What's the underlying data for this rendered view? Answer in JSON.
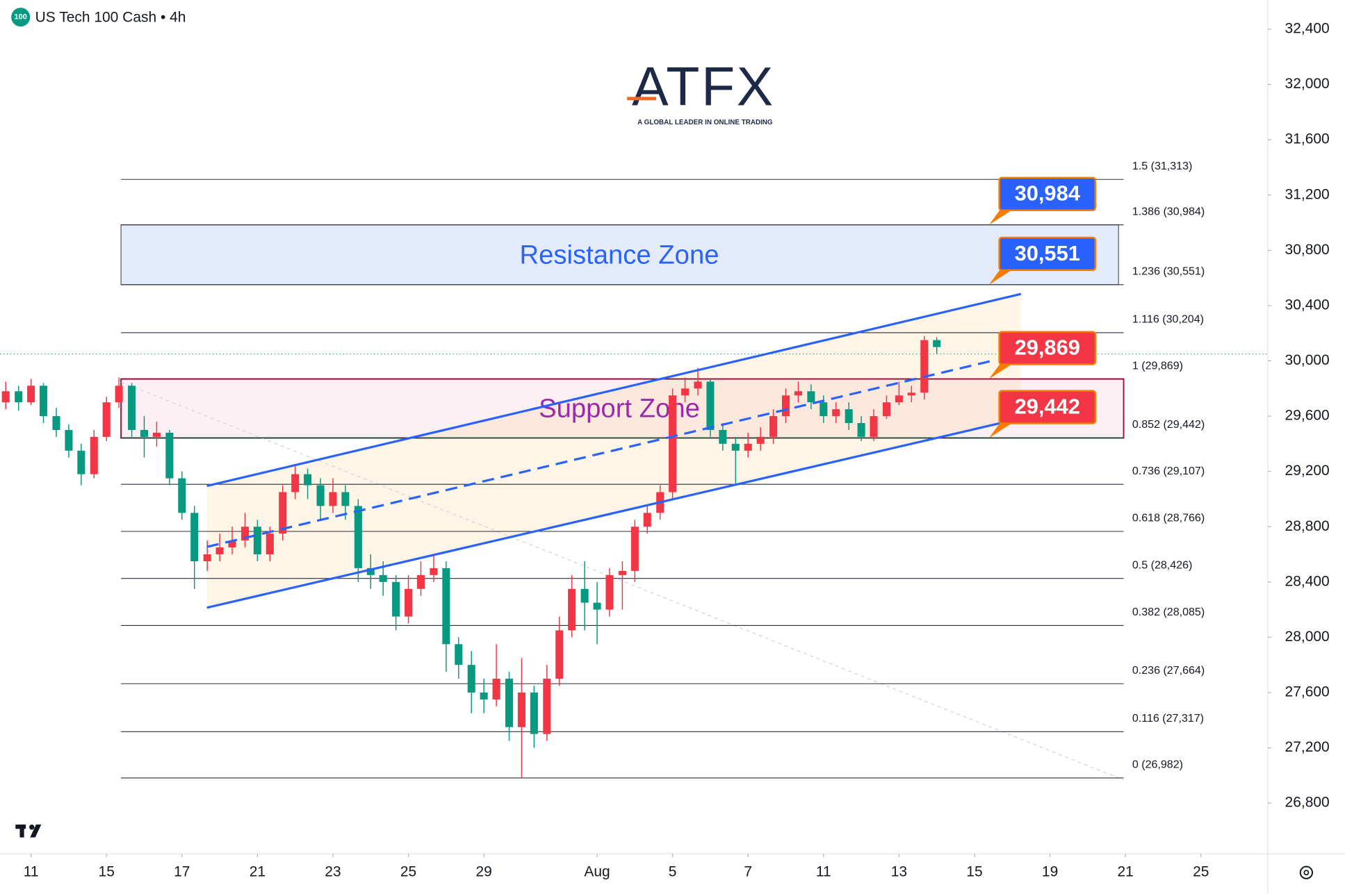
{
  "header": {
    "symbol_icon": "100",
    "title": "US Tech 100 Cash • 4h"
  },
  "logo": {
    "name": "ATFX",
    "tagline": "A GLOBAL LEADER IN ONLINE TRADING"
  },
  "chart_data": {
    "type": "candlestick",
    "up_color": "#f23645",
    "down_color": "#089981",
    "xlim": [
      -0.82,
      32.77
    ],
    "ylim": [
      26440,
      32611
    ],
    "xticks": [
      {
        "value": 0,
        "label": "11"
      },
      {
        "value": 2,
        "label": "15"
      },
      {
        "value": 4,
        "label": "17"
      },
      {
        "value": 6,
        "label": "21"
      },
      {
        "value": 8,
        "label": "23"
      },
      {
        "value": 10,
        "label": "25"
      },
      {
        "value": 12,
        "label": "29"
      },
      {
        "value": 15,
        "label": "Aug"
      },
      {
        "value": 17,
        "label": "5"
      },
      {
        "value": 19,
        "label": "7"
      },
      {
        "value": 21,
        "label": "11"
      },
      {
        "value": 23,
        "label": "13"
      },
      {
        "value": 25,
        "label": "15"
      },
      {
        "value": 27,
        "label": "19"
      },
      {
        "value": 29,
        "label": "21"
      },
      {
        "value": 31,
        "label": "25"
      }
    ],
    "yticks": [
      {
        "value": 26800,
        "label": "26,800"
      },
      {
        "value": 27200,
        "label": "27,200"
      },
      {
        "value": 27600,
        "label": "27,600"
      },
      {
        "value": 28000,
        "label": "28,000"
      },
      {
        "value": 28400,
        "label": "28,400"
      },
      {
        "value": 28800,
        "label": "28,800"
      },
      {
        "value": 29200,
        "label": "29,200"
      },
      {
        "value": 29600,
        "label": "29,600"
      },
      {
        "value": 30000,
        "label": "30,000"
      },
      {
        "value": 30400,
        "label": "30,400"
      },
      {
        "value": 30800,
        "label": "30,800"
      },
      {
        "value": 31200,
        "label": "31,200"
      },
      {
        "value": 31600,
        "label": "31,600"
      },
      {
        "value": 32000,
        "label": "32,000"
      },
      {
        "value": 32400,
        "label": "32,400"
      }
    ],
    "grid": false,
    "x": [
      -0.67,
      -0.33,
      0,
      0.33,
      0.67,
      1,
      1.33,
      1.67,
      2,
      2.33,
      2.67,
      3,
      3.33,
      3.67,
      4,
      4.33,
      4.67,
      5,
      5.33,
      5.67,
      6,
      6.33,
      6.67,
      7,
      7.33,
      7.67,
      8,
      8.33,
      8.67,
      9,
      9.33,
      9.67,
      10,
      10.33,
      10.67,
      11,
      11.33,
      11.67,
      12,
      12.33,
      12.67,
      13,
      13.33,
      13.67,
      14,
      14.33,
      14.67,
      15,
      15.33,
      15.67,
      16,
      16.33,
      16.67,
      17,
      17.33,
      17.67,
      18,
      18.33,
      18.67,
      19,
      19.33,
      19.67,
      20,
      20.33,
      20.67,
      21,
      21.33,
      21.67,
      22,
      22.33,
      22.67,
      23,
      23.33,
      23.67,
      24
    ],
    "open": [
      29700,
      29780,
      29700,
      29820,
      29600,
      29500,
      29350,
      29180,
      29450,
      29700,
      29820,
      29500,
      29450,
      29480,
      29150,
      28900,
      28550,
      28600,
      28650,
      28700,
      28800,
      28600,
      28750,
      29050,
      29180,
      29100,
      28950,
      29050,
      28950,
      28500,
      28450,
      28400,
      28150,
      28350,
      28450,
      28500,
      27950,
      27800,
      27600,
      27550,
      27700,
      27350,
      27600,
      27300,
      27700,
      28050,
      28350,
      28250,
      28200,
      28450,
      28480,
      28800,
      28900,
      29050,
      29750,
      29800,
      29850,
      29500,
      29400,
      29350,
      29400,
      29450,
      29600,
      29750,
      29780,
      29700,
      29600,
      29650,
      29550,
      29450,
      29600,
      29700,
      29750,
      29770,
      30150
    ],
    "high": [
      29850,
      29820,
      29870,
      29840,
      29660,
      29540,
      29400,
      29500,
      29740,
      29880,
      29840,
      29600,
      29560,
      29500,
      29200,
      28950,
      28700,
      28750,
      28800,
      28900,
      28850,
      28800,
      29100,
      29250,
      29220,
      29150,
      29150,
      29100,
      29000,
      28600,
      28550,
      28450,
      28450,
      28550,
      28600,
      28550,
      28000,
      27900,
      27700,
      27950,
      27750,
      27850,
      27650,
      27800,
      28150,
      28450,
      28550,
      28400,
      28500,
      28550,
      28850,
      28950,
      29100,
      29800,
      29880,
      29950,
      29870,
      29550,
      29450,
      29480,
      29520,
      29650,
      29800,
      29850,
      29830,
      29750,
      29700,
      29700,
      29600,
      29650,
      29750,
      29850,
      29820,
      30180,
      30170
    ],
    "low": [
      29650,
      29640,
      29680,
      29550,
      29450,
      29300,
      29100,
      29150,
      29420,
      29660,
      29450,
      29300,
      29380,
      29100,
      28850,
      28350,
      28480,
      28550,
      28600,
      28650,
      28550,
      28550,
      28700,
      29000,
      29000,
      28850,
      28900,
      28850,
      28400,
      28350,
      28300,
      28050,
      28100,
      28300,
      28400,
      27750,
      27700,
      27450,
      27450,
      27500,
      27250,
      26982,
      27200,
      27250,
      27650,
      28000,
      28050,
      27950,
      28150,
      28200,
      28400,
      28750,
      28850,
      29000,
      29700,
      29750,
      29450,
      29350,
      29100,
      29300,
      29350,
      29400,
      29550,
      29700,
      29650,
      29550,
      29550,
      29500,
      29420,
      29420,
      29580,
      29680,
      29700,
      29720,
      30050
    ],
    "close": [
      29780,
      29700,
      29820,
      29600,
      29500,
      29350,
      29180,
      29450,
      29700,
      29820,
      29500,
      29450,
      29480,
      29150,
      28900,
      28550,
      28600,
      28650,
      28700,
      28800,
      28600,
      28750,
      29050,
      29180,
      29100,
      28950,
      29050,
      28950,
      28500,
      28450,
      28400,
      28150,
      28350,
      28450,
      28500,
      27950,
      27800,
      27600,
      27550,
      27700,
      27350,
      27600,
      27300,
      27700,
      28050,
      28350,
      28250,
      28200,
      28450,
      28480,
      28800,
      28900,
      29050,
      29750,
      29800,
      29850,
      29500,
      29400,
      29350,
      29400,
      29450,
      29600,
      29750,
      29780,
      29700,
      29600,
      29650,
      29550,
      29450,
      29600,
      29700,
      29750,
      29770,
      30150,
      30100
    ],
    "last_price": 30050,
    "fib_levels": [
      {
        "label": "1.5 (31,313)",
        "value": 31313
      },
      {
        "label": "1.386 (30,984)",
        "value": 30984
      },
      {
        "label": "1.236 (30,551)",
        "value": 30551
      },
      {
        "label": "1.116 (30,204)",
        "value": 30204
      },
      {
        "label": "1 (29,869)",
        "value": 29869
      },
      {
        "label": "0.852 (29,442)",
        "value": 29442
      },
      {
        "label": "0.736 (29,107)",
        "value": 29107
      },
      {
        "label": "0.618 (28,766)",
        "value": 28766
      },
      {
        "label": "0.5 (28,426)",
        "value": 28426
      },
      {
        "label": "0.382 (28,085)",
        "value": 28085
      },
      {
        "label": "0.236 (27,664)",
        "value": 27664
      },
      {
        "label": "0.116 (27,317)",
        "value": 27317
      },
      {
        "label": "0 (26,982)",
        "value": 26982
      }
    ],
    "zones": [
      {
        "name": "Resistance Zone",
        "low": 30551,
        "high": 30984,
        "fill": "#e3ebfd",
        "border": "#333333",
        "text_color": "#2962ff"
      },
      {
        "name": "Support Zone",
        "low": 29442,
        "high": 29869,
        "fill": "#fdf0f4",
        "border": "#b0103a",
        "text_color": "#9c27b0"
      }
    ],
    "channel": {
      "x": [
        4.66,
        26.23
      ],
      "upper": [
        29095,
        30484
      ],
      "lower": [
        28214,
        29584
      ],
      "mid_x": [
        4.66,
        25.55
      ],
      "mid": [
        28654,
        30006
      ],
      "color": "#2962ff"
    },
    "trendline": {
      "x": [
        2.39,
        28.95
      ],
      "values": [
        29845,
        26968
      ]
    },
    "callouts": [
      {
        "value": 30984,
        "label": "30,984",
        "color": "#2962ff"
      },
      {
        "value": 30551,
        "label": "30,551",
        "color": "#2962ff"
      },
      {
        "value": 29869,
        "label": "29,869",
        "color": "#f23645"
      },
      {
        "value": 29442,
        "label": "29,442",
        "color": "#f23645"
      }
    ]
  }
}
